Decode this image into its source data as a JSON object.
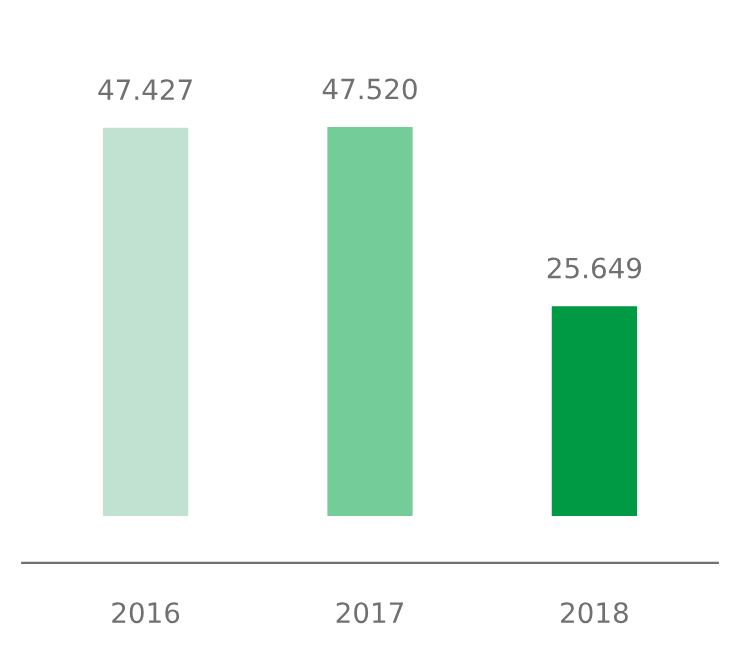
{
  "chart_data": {
    "type": "bar",
    "categories": [
      "2016",
      "2017",
      "2018"
    ],
    "values": [
      47.427,
      47.52,
      25.649
    ],
    "colors": [
      "#c1e2d1",
      "#74cc99",
      "#009a44"
    ],
    "value_labels": [
      "47.427",
      "47.520",
      "25.649"
    ],
    "grid": false,
    "legend": false
  }
}
